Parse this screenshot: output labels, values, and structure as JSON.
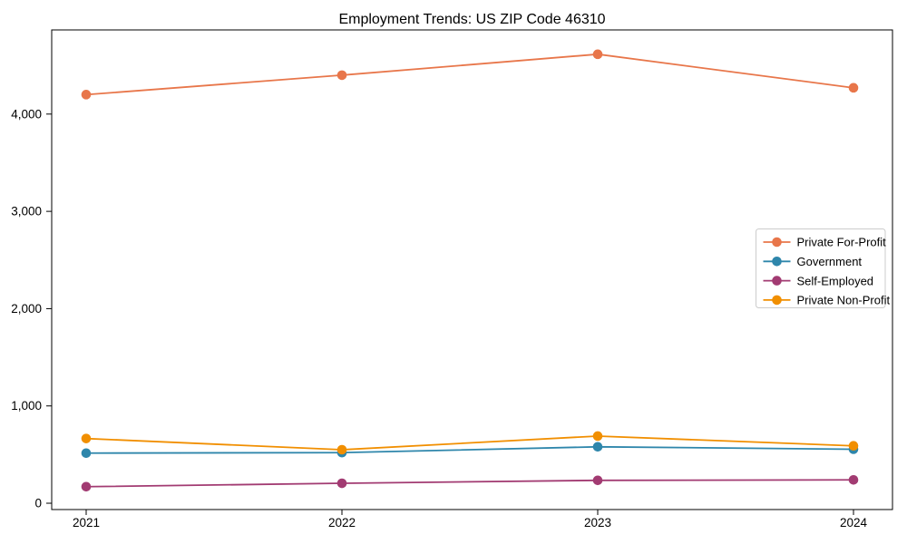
{
  "chart_data": {
    "type": "line",
    "title": "Employment Trends: US ZIP Code 46310",
    "categories": [
      "2021",
      "2022",
      "2023",
      "2024"
    ],
    "series": [
      {
        "name": "Private For-Profit",
        "color": "#E8764A",
        "values": [
          4200,
          4400,
          4615,
          4270
        ]
      },
      {
        "name": "Government",
        "color": "#2E86AB",
        "values": [
          515,
          520,
          580,
          555
        ]
      },
      {
        "name": "Self-Employed",
        "color": "#A23B72",
        "values": [
          170,
          205,
          235,
          240
        ]
      },
      {
        "name": "Private Non-Profit",
        "color": "#F18F01",
        "values": [
          665,
          550,
          690,
          590
        ]
      }
    ],
    "xlabel": "",
    "ylabel": "",
    "ylim": [
      -65,
      4865
    ],
    "yticks": [
      0,
      1000,
      2000,
      3000,
      4000
    ],
    "ytick_labels": [
      "0",
      "1,000",
      "2,000",
      "3,000",
      "4,000"
    ],
    "grid": false,
    "legend_position": "center-right",
    "marker": "circle",
    "axis_color": "#000000",
    "legend_border_color": "#cccccc",
    "background": "#ffffff"
  }
}
